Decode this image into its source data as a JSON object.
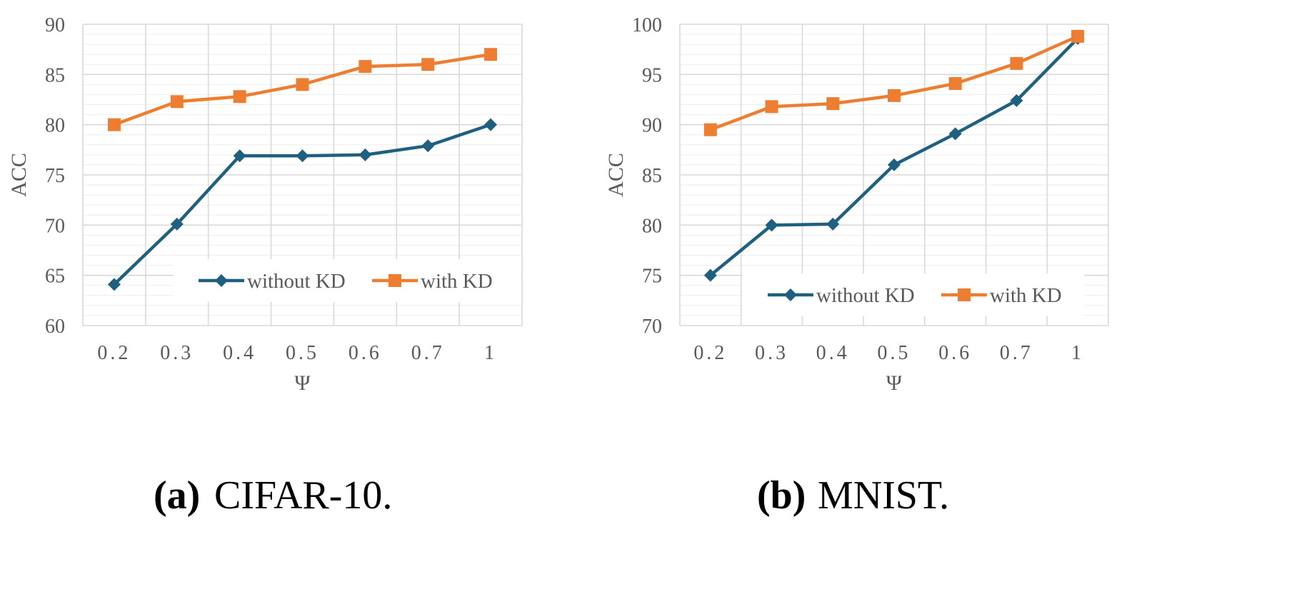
{
  "colors": {
    "without_kd": "#1f5f7f",
    "with_kd": "#ed7d31",
    "grid_major": "#d9d9d9",
    "grid_minor": "#eeeeee",
    "axis_text": "#595959"
  },
  "chart_data": [
    {
      "type": "line",
      "title": "",
      "xlabel": "Ψ",
      "ylabel": "ACC",
      "categories": [
        "0.2",
        "0.3",
        "0.4",
        "0.5",
        "0.6",
        "0.7",
        "1"
      ],
      "ylim": [
        60,
        90
      ],
      "yticks": [
        "60",
        "65",
        "70",
        "75",
        "80",
        "85",
        "90"
      ],
      "grid": true,
      "legend_position": "bottom-right",
      "caption_label": "(a)",
      "caption_text": "CIFAR-10.",
      "series": [
        {
          "name": "without KD",
          "marker": "diamond",
          "values": [
            64.1,
            70.1,
            76.9,
            76.9,
            77.0,
            77.9,
            80.0
          ]
        },
        {
          "name": "with KD",
          "marker": "square",
          "values": [
            80.0,
            82.3,
            82.8,
            84.0,
            85.8,
            86.0,
            87.0
          ]
        }
      ]
    },
    {
      "type": "line",
      "title": "",
      "xlabel": "Ψ",
      "ylabel": "ACC",
      "categories": [
        "0.2",
        "0.3",
        "0.4",
        "0.5",
        "0.6",
        "0.7",
        "1"
      ],
      "ylim": [
        70,
        100
      ],
      "yticks": [
        "70",
        "75",
        "80",
        "85",
        "90",
        "95",
        "100"
      ],
      "grid": true,
      "legend_position": "bottom-right",
      "caption_label": "(b)",
      "caption_text": "MNIST.",
      "series": [
        {
          "name": "without KD",
          "marker": "diamond",
          "values": [
            75.0,
            80.0,
            80.1,
            86.0,
            89.1,
            92.4,
            98.6
          ]
        },
        {
          "name": "with KD",
          "marker": "square",
          "values": [
            89.5,
            91.8,
            92.1,
            92.9,
            94.1,
            96.1,
            98.8
          ]
        }
      ]
    }
  ]
}
